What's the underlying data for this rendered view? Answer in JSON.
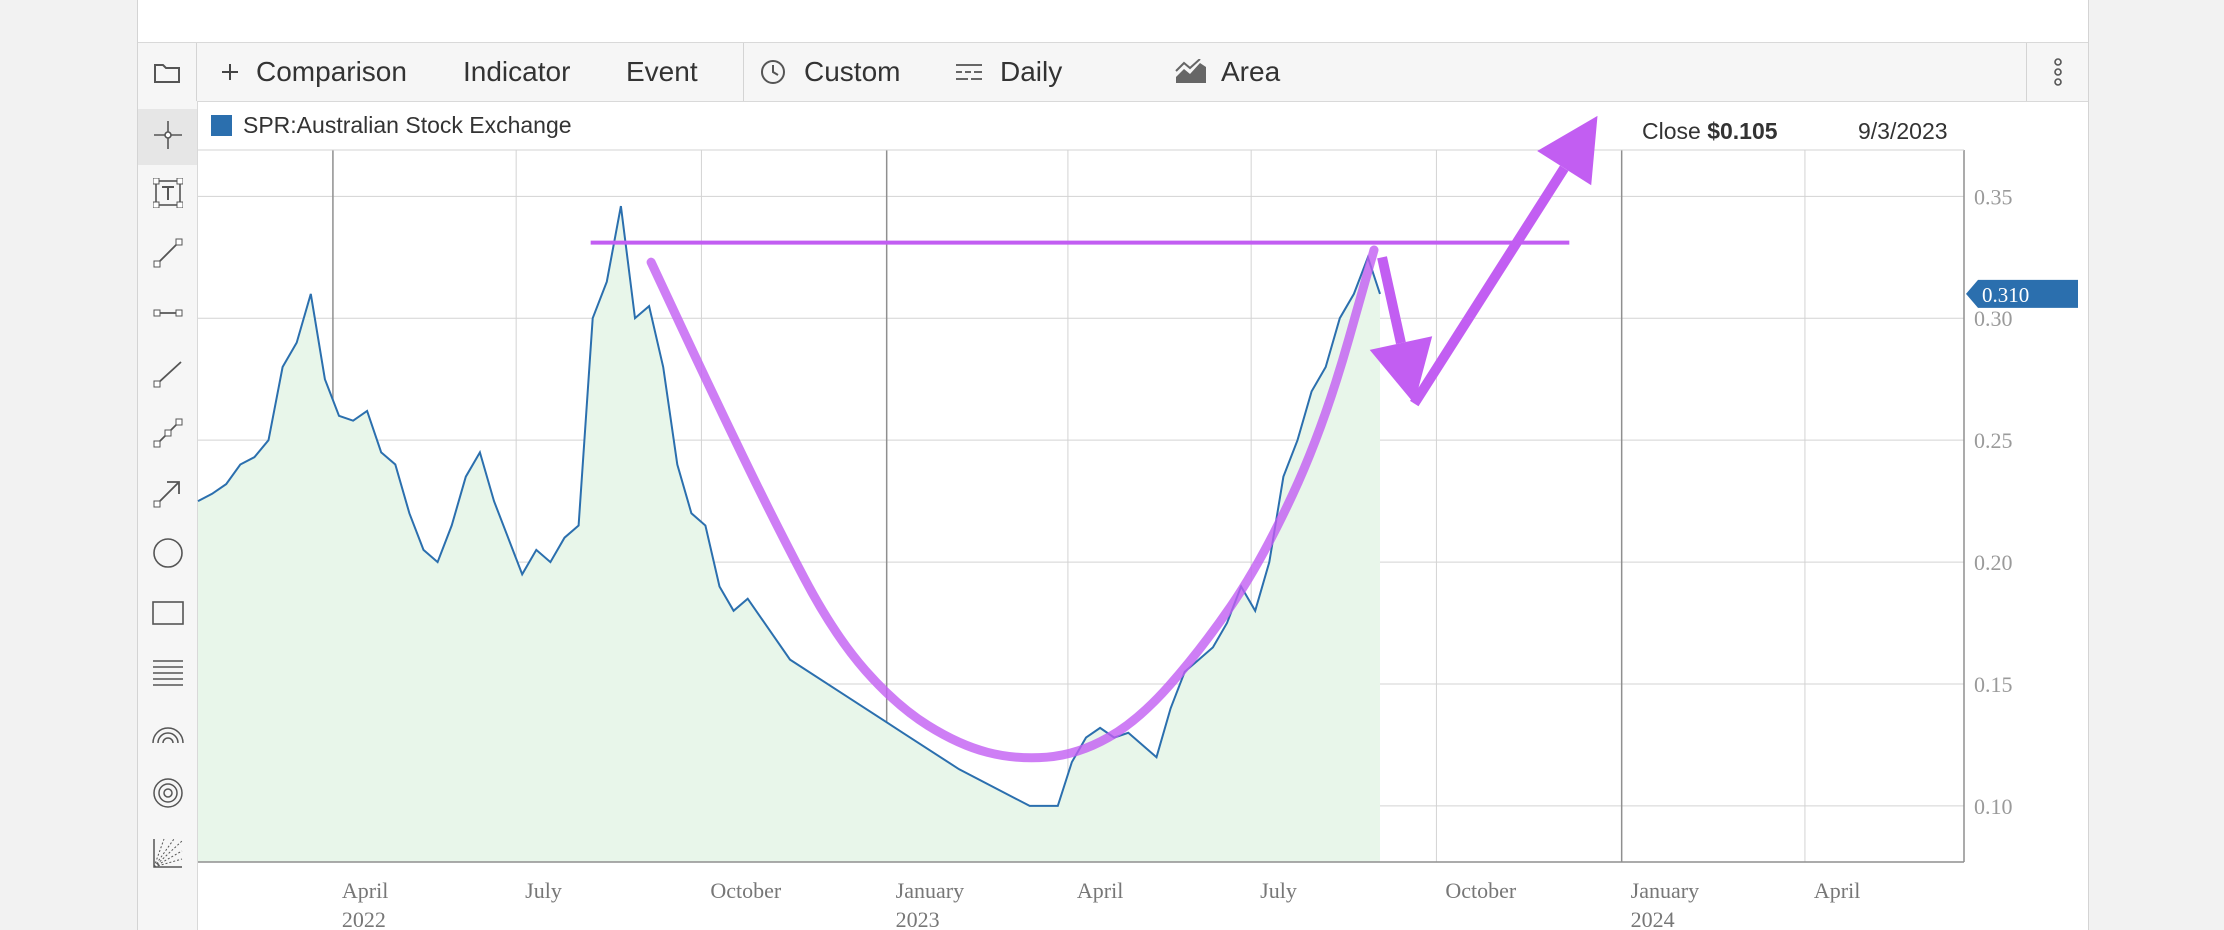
{
  "toolbar": {
    "comparison_label": "Comparison",
    "indicator_label": "Indicator",
    "event_label": "Event",
    "custom_label": "Custom",
    "daily_label": "Daily",
    "area_label": "Area",
    "icons": [
      "folder-icon",
      "plus-icon",
      "clock-icon",
      "interval-icon",
      "area-chart-icon",
      "kebab-menu-icon"
    ]
  },
  "sidebar_tools": [
    "crosshair-icon",
    "text-tool-icon",
    "line-segment-icon",
    "horizontal-segment-icon",
    "ray-icon",
    "channel-icon",
    "arrow-icon",
    "circle-icon",
    "rectangle-icon",
    "fibonacci-icon",
    "arc-icon",
    "concentric-circles-icon",
    "gann-fan-icon"
  ],
  "legend": {
    "series_name": "SPR:Australian Stock Exchange",
    "color": "#2b6fae"
  },
  "readout": {
    "label": "Close",
    "value": "$0.105",
    "date": "9/3/2023"
  },
  "price_badge": "0.310",
  "colors": {
    "line": "#2b6fae",
    "area": "#e8f6ea",
    "annotation": "#c25ef2",
    "badge": "#2b6fae"
  },
  "chart_data": {
    "type": "area",
    "title": "",
    "xlabel": "",
    "ylabel": "",
    "xlim": [
      "2022-01-24",
      "2024-06-19"
    ],
    "ylim": [
      0.077,
      0.369
    ],
    "grid": true,
    "legend_position": "top-left",
    "y_ticks": [
      "0.10",
      "0.15",
      "0.20",
      "0.25",
      "0.30",
      "0.35"
    ],
    "x_ticks": [
      {
        "date": "2022-04-01",
        "label": "April",
        "sub": "2022"
      },
      {
        "date": "2022-07-01",
        "label": "July",
        "sub": ""
      },
      {
        "date": "2022-10-01",
        "label": "October",
        "sub": ""
      },
      {
        "date": "2023-01-01",
        "label": "January",
        "sub": "2023"
      },
      {
        "date": "2023-04-01",
        "label": "April",
        "sub": ""
      },
      {
        "date": "2023-07-01",
        "label": "July",
        "sub": ""
      },
      {
        "date": "2023-10-01",
        "label": "October",
        "sub": ""
      },
      {
        "date": "2024-01-01",
        "label": "January",
        "sub": "2024"
      },
      {
        "date": "2024-04-01",
        "label": "April",
        "sub": ""
      }
    ],
    "series": [
      {
        "x": [
          "2022-01-24",
          "2022-01-31",
          "2022-02-07",
          "2022-02-14",
          "2022-02-21",
          "2022-02-28",
          "2022-03-07",
          "2022-03-14",
          "2022-03-21",
          "2022-03-28",
          "2022-04-04",
          "2022-04-11",
          "2022-04-18",
          "2022-04-25",
          "2022-05-02",
          "2022-05-09",
          "2022-05-16",
          "2022-05-23",
          "2022-05-30",
          "2022-06-06",
          "2022-06-13",
          "2022-06-20",
          "2022-06-27",
          "2022-07-04",
          "2022-07-11",
          "2022-07-18",
          "2022-07-25",
          "2022-08-01",
          "2022-08-08",
          "2022-08-15",
          "2022-08-22",
          "2022-08-29",
          "2022-09-05",
          "2022-09-12",
          "2022-09-19",
          "2022-09-26",
          "2022-10-03",
          "2022-10-10",
          "2022-10-17",
          "2022-10-24",
          "2022-11-14",
          "2022-12-12",
          "2023-01-09",
          "2023-02-06",
          "2023-03-06",
          "2023-03-13",
          "2023-03-20",
          "2023-03-27",
          "2023-04-03",
          "2023-04-10",
          "2023-04-17",
          "2023-04-24",
          "2023-05-01",
          "2023-05-08",
          "2023-05-15",
          "2023-05-22",
          "2023-05-29",
          "2023-06-05",
          "2023-06-12",
          "2023-06-19",
          "2023-06-26",
          "2023-07-03",
          "2023-07-10",
          "2023-07-17",
          "2023-07-24",
          "2023-07-31",
          "2023-08-07",
          "2023-08-14",
          "2023-08-21",
          "2023-08-28",
          "2023-09-03"
        ],
        "values": [
          0.225,
          0.228,
          0.232,
          0.24,
          0.243,
          0.25,
          0.28,
          0.29,
          0.31,
          0.275,
          0.26,
          0.258,
          0.262,
          0.245,
          0.24,
          0.22,
          0.205,
          0.2,
          0.215,
          0.235,
          0.245,
          0.225,
          0.21,
          0.195,
          0.205,
          0.2,
          0.21,
          0.215,
          0.3,
          0.315,
          0.346,
          0.3,
          0.305,
          0.28,
          0.24,
          0.22,
          0.215,
          0.19,
          0.18,
          0.185,
          0.16,
          0.145,
          0.13,
          0.115,
          0.103,
          0.1,
          0.1,
          0.1,
          0.118,
          0.128,
          0.132,
          0.128,
          0.13,
          0.125,
          0.12,
          0.14,
          0.155,
          0.16,
          0.165,
          0.175,
          0.19,
          0.18,
          0.2,
          0.235,
          0.25,
          0.27,
          0.28,
          0.3,
          0.31,
          0.325,
          0.31
        ]
      }
    ],
    "annotations": {
      "resistance_y": 0.331,
      "resistance_x": [
        "2022-08-07",
        "2023-12-06"
      ],
      "cup_curve": [
        [
          "2022-09-06",
          0.323
        ],
        [
          "2022-10-06",
          0.27
        ],
        [
          "2022-11-06",
          0.217
        ],
        [
          "2022-12-06",
          0.17
        ],
        [
          "2023-01-06",
          0.141
        ],
        [
          "2023-02-06",
          0.125
        ],
        [
          "2023-03-06",
          0.119
        ],
        [
          "2023-04-06",
          0.121
        ],
        [
          "2023-05-06",
          0.135
        ],
        [
          "2023-06-06",
          0.164
        ],
        [
          "2023-07-06",
          0.2
        ],
        [
          "2023-08-06",
          0.255
        ],
        [
          "2023-08-31",
          0.328
        ]
      ],
      "arrows": [
        {
          "from": [
            "2023-09-04",
            0.325
          ],
          "to": [
            "2023-09-20",
            0.265
          ]
        },
        {
          "from": [
            "2023-09-20",
            0.265
          ],
          "to": [
            "2023-12-20",
            0.383
          ]
        }
      ]
    }
  }
}
